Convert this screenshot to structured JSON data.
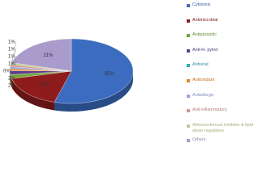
{
  "chart_data": {
    "type": "pie",
    "categories": [
      "Cytotoxic",
      "Antimicrobial",
      "Antiparasitic",
      "Anti-H. pylori",
      "Antiviral",
      "Antioxidant",
      "Antiallergic",
      "Anti-inflammatory",
      "Atherosclerosis inhibitor & lipid down regulation",
      "Others"
    ],
    "values": [
      55,
      17,
      2,
      2,
      0,
      1,
      1,
      1,
      1,
      21
    ],
    "value_labels": [
      "55%",
      "17%",
      "2%",
      "2%",
      "0%",
      "1%",
      "1%",
      "1%",
      "1%",
      "21%"
    ],
    "colors": [
      "#3c6cc0",
      "#8e1c1c",
      "#76a53a",
      "#5c3f8c",
      "#35a6c2",
      "#e5852a",
      "#93a8d8",
      "#d69292",
      "#b8d08e",
      "#a99bcb"
    ]
  }
}
